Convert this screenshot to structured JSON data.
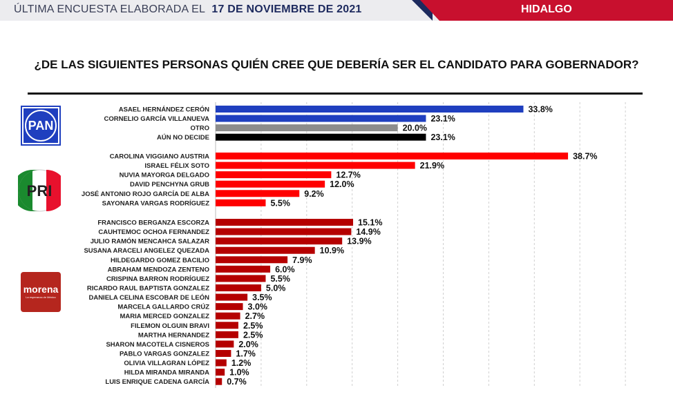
{
  "header": {
    "prefix": "ÚLTIMA ENCUESTA ELABORADA EL",
    "date": "17 DE NOVIEMBRE DE 2021",
    "region": "HIDALGO"
  },
  "question": "¿DE LAS SIGUIENTES PERSONAS QUIÉN CREE QUE DEBERÍA SER EL CANDIDATO PARA GOBERNADOR?",
  "parties": [
    {
      "name": "PAN",
      "logo_text": "PAN",
      "color": "#1f3fbf"
    },
    {
      "name": "PRI",
      "logo_text": "PRI",
      "color": "#ff0000"
    },
    {
      "name": "MORENA",
      "logo_text": "morena",
      "logo_tagline": "La esperanza de México",
      "color": "#b50000"
    }
  ],
  "chart_data": {
    "type": "bar",
    "orientation": "horizontal",
    "title": "¿DE LAS SIGUIENTES PERSONAS QUIÉN CREE QUE DEBERÍA SER EL CANDIDATO PARA GOBERNADOR?",
    "xlim": [
      0,
      45
    ],
    "grid": true,
    "groups": [
      {
        "party": "PAN",
        "bars": [
          {
            "label": "ASAEL HERNÁNDEZ CERÓN",
            "value": 33.8,
            "display": "33.8%",
            "color": "#1f3fbf"
          },
          {
            "label": "CORNELIO GARCÍA VILLANUEVA",
            "value": 23.1,
            "display": "23.1%",
            "color": "#1f3fbf"
          },
          {
            "label": "OTRO",
            "value": 20.0,
            "display": "20.0%",
            "color": "#8c8c8c"
          },
          {
            "label": "AÚN NO DECIDE",
            "value": 23.1,
            "display": "23.1%",
            "color": "#000000"
          }
        ]
      },
      {
        "party": "PRI",
        "bars": [
          {
            "label": "CAROLINA VIGGIANO AUSTRIA",
            "value": 38.7,
            "display": "38.7%",
            "color": "#ff0000"
          },
          {
            "label": "ISRAEL FÉLIX SOTO",
            "value": 21.9,
            "display": "21.9%",
            "color": "#ff0000"
          },
          {
            "label": "NUVIA MAYORGA DELGADO",
            "value": 12.7,
            "display": "12.7%",
            "color": "#ff0000"
          },
          {
            "label": "DAVID PENCHYNA GRUB",
            "value": 12.0,
            "display": "12.0%",
            "color": "#ff0000"
          },
          {
            "label": "JOSÉ ANTONIO ROJO GARCÍA DE ALBA",
            "value": 9.2,
            "display": "9.2%",
            "color": "#ff0000"
          },
          {
            "label": "SAYONARA VARGAS RODRÍGUEZ",
            "value": 5.5,
            "display": "5.5%",
            "color": "#ff0000"
          }
        ]
      },
      {
        "party": "MORENA",
        "bars": [
          {
            "label": "FRANCISCO BERGANZA ESCORZA",
            "value": 15.1,
            "display": "15.1%",
            "color": "#b50000"
          },
          {
            "label": "CAUHTEMOC OCHOA FERNANDEZ",
            "value": 14.9,
            "display": "14.9%",
            "color": "#b50000"
          },
          {
            "label": "JULIO RAMÓN MENCAHCA SALAZAR",
            "value": 13.9,
            "display": "13.9%",
            "color": "#b50000"
          },
          {
            "label": "SUSANA ARACELI ANGELEZ QUEZADA",
            "value": 10.9,
            "display": "10.9%",
            "color": "#b50000"
          },
          {
            "label": "HILDEGARDO GOMEZ BACILIO",
            "value": 7.9,
            "display": "7.9%",
            "color": "#b50000"
          },
          {
            "label": "ABRAHAM MENDOZA ZENTENO",
            "value": 6.0,
            "display": "6.0%",
            "color": "#b50000"
          },
          {
            "label": "CRISPINA BARRON RODRÍGUEZ",
            "value": 5.5,
            "display": "5.5%",
            "color": "#b50000"
          },
          {
            "label": "RICARDO RAUL BAPTISTA GONZALEZ",
            "value": 5.0,
            "display": "5.0%",
            "color": "#b50000"
          },
          {
            "label": "DANIELA CELINA ESCOBAR DE LEÓN",
            "value": 3.5,
            "display": "3.5%",
            "color": "#b50000"
          },
          {
            "label": "MARCELA GALLARDO CRÚZ",
            "value": 3.0,
            "display": "3.0%",
            "color": "#b50000"
          },
          {
            "label": "MARIA MERCED GONZALEZ",
            "value": 2.7,
            "display": "2.7%",
            "color": "#b50000"
          },
          {
            "label": "FILEMON OLGUIN BRAVI",
            "value": 2.5,
            "display": "2.5%",
            "color": "#b50000"
          },
          {
            "label": "MARTHA HERNANDEZ",
            "value": 2.5,
            "display": "2.5%",
            "color": "#b50000"
          },
          {
            "label": "SHARON MACOTELA CISNEROS",
            "value": 2.0,
            "display": "2.0%",
            "color": "#b50000"
          },
          {
            "label": "PABLO VARGAS GONZALEZ",
            "value": 1.7,
            "display": "1.7%",
            "color": "#b50000"
          },
          {
            "label": "OLIVIA VILLAGRAN LÓPEZ",
            "value": 1.2,
            "display": "1.2%",
            "color": "#b50000"
          },
          {
            "label": "HILDA MIRANDA MIRANDA",
            "value": 1.0,
            "display": "1.0%",
            "color": "#b50000"
          },
          {
            "label": "LUIS ENRIQUE CADENA GARCÍA",
            "value": 0.7,
            "display": "0.7%",
            "color": "#b50000"
          }
        ]
      }
    ]
  }
}
